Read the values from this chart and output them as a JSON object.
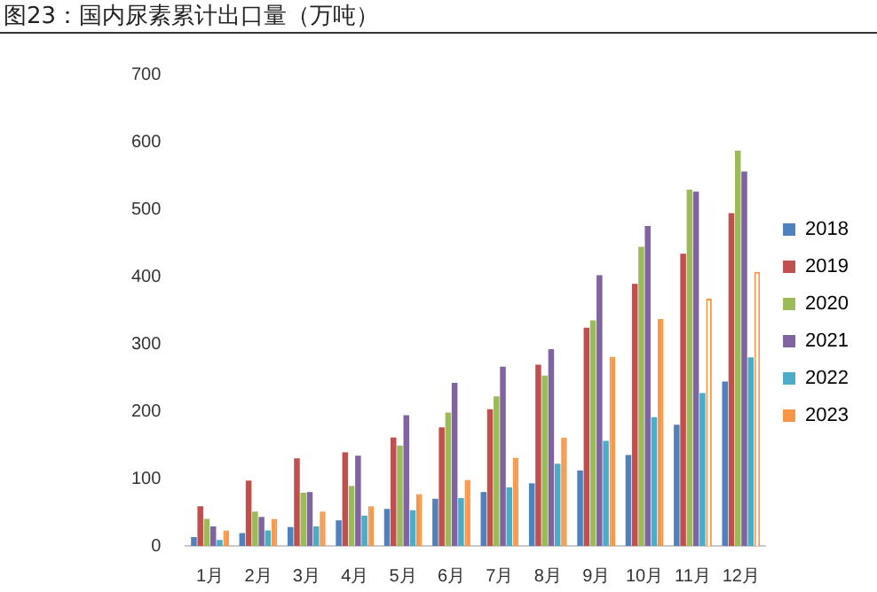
{
  "chart_data": {
    "type": "bar",
    "title": "图23：国内尿素累计出口量（万吨）",
    "categories": [
      "1月",
      "2月",
      "3月",
      "4月",
      "5月",
      "6月",
      "7月",
      "8月",
      "9月",
      "10月",
      "11月",
      "12月"
    ],
    "series": [
      {
        "name": "2018",
        "color": "#4f81bd",
        "values": [
          13,
          19,
          28,
          38,
          55,
          70,
          80,
          93,
          112,
          135,
          180,
          244
        ]
      },
      {
        "name": "2019",
        "color": "#c0504d",
        "values": [
          59,
          97,
          130,
          139,
          161,
          176,
          203,
          269,
          324,
          389,
          434,
          494
        ]
      },
      {
        "name": "2020",
        "color": "#9bbb59",
        "values": [
          40,
          51,
          79,
          89,
          149,
          198,
          222,
          253,
          335,
          444,
          529,
          587
        ]
      },
      {
        "name": "2021",
        "color": "#8064a2",
        "values": [
          29,
          43,
          80,
          134,
          194,
          242,
          266,
          292,
          402,
          475,
          526,
          556
        ]
      },
      {
        "name": "2022",
        "color": "#4bacc6",
        "values": [
          9,
          23,
          29,
          45,
          53,
          71,
          87,
          122,
          156,
          191,
          227,
          280
        ]
      },
      {
        "name": "2023",
        "color": "#f79646",
        "colors": [
          "#f79646",
          "#f79646",
          "#f79646",
          "#f79646",
          "#f79646",
          "#f79646",
          "#f79646",
          "#f79646",
          "#f79646",
          "#f79646",
          "#ffffff",
          "#ffffff"
        ],
        "values": [
          23,
          40,
          51,
          59,
          77,
          98,
          131,
          161,
          281,
          337,
          367,
          407
        ]
      }
    ],
    "ylim": [
      0,
      700
    ],
    "yticks": [
      0,
      100,
      200,
      300,
      400,
      500,
      600,
      700
    ],
    "grid": false,
    "legend": "right"
  }
}
